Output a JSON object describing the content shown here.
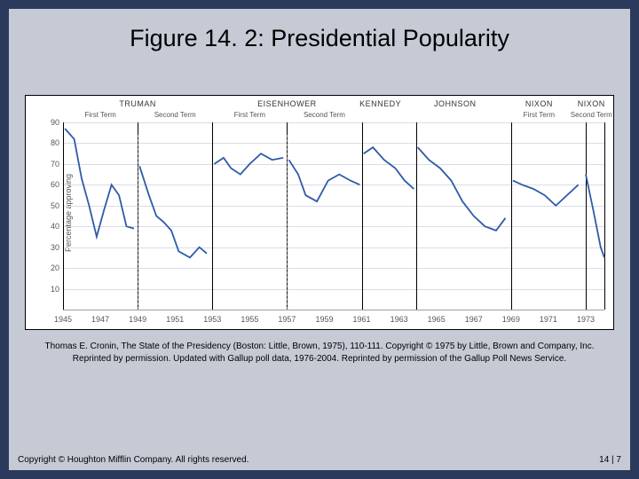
{
  "title": "Figure 14. 2: Presidential Popularity",
  "caption": "Thomas E. Cronin, The State of the Presidency (Boston: Little, Brown, 1975), 110-111. Copyright © 1975 by Little, Brown and Company, Inc. Reprinted by permission. Updated with Gallup poll data, 1976-2004. Reprinted by permission of the Gallup Poll News Service.",
  "footer_left": "Copyright © Houghton Mifflin Company. All rights reserved.",
  "footer_right": "14 | 7",
  "chart": {
    "type": "line",
    "y_label": "Percentage approving",
    "ylim": [
      0,
      90
    ],
    "ytick_step": 10,
    "xlim": [
      1945,
      1974
    ],
    "xticks": [
      1945,
      1947,
      1949,
      1951,
      1953,
      1955,
      1957,
      1959,
      1961,
      1963,
      1965,
      1967,
      1969,
      1971,
      1973
    ],
    "background_color": "#ffffff",
    "grid_color": "#d9dde4",
    "axis_color": "#9aa0aa",
    "line_color": "#2f5aa8",
    "line_width": 1.8,
    "presidents": [
      {
        "name": "TRUMAN",
        "x": 1949,
        "terms": [
          {
            "label": "First Term",
            "x": 1947
          },
          {
            "label": "Second Term",
            "x": 1951
          }
        ],
        "divider": 1949
      },
      {
        "name": "EISENHOWER",
        "x": 1957,
        "terms": [
          {
            "label": "First Term",
            "x": 1955
          },
          {
            "label": "Second Term",
            "x": 1959
          }
        ],
        "divider": 1957
      },
      {
        "name": "KENNEDY",
        "x": 1962,
        "terms": []
      },
      {
        "name": "JOHNSON",
        "x": 1966,
        "terms": []
      },
      {
        "name": "NIXON",
        "x": 1970.5,
        "terms": [
          {
            "label": "First Term",
            "x": 1970.5
          }
        ]
      },
      {
        "name": "NIXON",
        "x": 1973.3,
        "terms": [
          {
            "label": "Second Term",
            "x": 1973.3
          }
        ]
      }
    ],
    "term_boundaries": [
      1945,
      1949,
      1953,
      1957,
      1961,
      1963.9,
      1969,
      1973,
      1974
    ],
    "series": [
      {
        "x": 1945.1,
        "y": 87
      },
      {
        "x": 1945.6,
        "y": 82
      },
      {
        "x": 1946.0,
        "y": 63
      },
      {
        "x": 1946.4,
        "y": 50
      },
      {
        "x": 1946.8,
        "y": 35
      },
      {
        "x": 1947.2,
        "y": 48
      },
      {
        "x": 1947.6,
        "y": 60
      },
      {
        "x": 1948.0,
        "y": 55
      },
      {
        "x": 1948.4,
        "y": 40
      },
      {
        "x": 1948.8,
        "y": 39
      },
      {
        "x": 1949.1,
        "y": 69
      },
      {
        "x": 1949.6,
        "y": 55
      },
      {
        "x": 1950.0,
        "y": 45
      },
      {
        "x": 1950.4,
        "y": 42
      },
      {
        "x": 1950.8,
        "y": 38
      },
      {
        "x": 1951.2,
        "y": 28
      },
      {
        "x": 1951.8,
        "y": 25
      },
      {
        "x": 1952.3,
        "y": 30
      },
      {
        "x": 1952.7,
        "y": 27
      },
      {
        "x": 1953.1,
        "y": 70
      },
      {
        "x": 1953.6,
        "y": 73
      },
      {
        "x": 1954.0,
        "y": 68
      },
      {
        "x": 1954.5,
        "y": 65
      },
      {
        "x": 1955.0,
        "y": 70
      },
      {
        "x": 1955.6,
        "y": 75
      },
      {
        "x": 1956.2,
        "y": 72
      },
      {
        "x": 1956.8,
        "y": 73
      },
      {
        "x": 1957.1,
        "y": 72
      },
      {
        "x": 1957.6,
        "y": 65
      },
      {
        "x": 1958.0,
        "y": 55
      },
      {
        "x": 1958.6,
        "y": 52
      },
      {
        "x": 1959.2,
        "y": 62
      },
      {
        "x": 1959.8,
        "y": 65
      },
      {
        "x": 1960.4,
        "y": 62
      },
      {
        "x": 1960.9,
        "y": 60
      },
      {
        "x": 1961.1,
        "y": 75
      },
      {
        "x": 1961.6,
        "y": 78
      },
      {
        "x": 1962.2,
        "y": 72
      },
      {
        "x": 1962.8,
        "y": 68
      },
      {
        "x": 1963.3,
        "y": 62
      },
      {
        "x": 1963.8,
        "y": 58
      },
      {
        "x": 1964.0,
        "y": 78
      },
      {
        "x": 1964.6,
        "y": 72
      },
      {
        "x": 1965.2,
        "y": 68
      },
      {
        "x": 1965.8,
        "y": 62
      },
      {
        "x": 1966.4,
        "y": 52
      },
      {
        "x": 1967.0,
        "y": 45
      },
      {
        "x": 1967.6,
        "y": 40
      },
      {
        "x": 1968.2,
        "y": 38
      },
      {
        "x": 1968.7,
        "y": 44
      },
      {
        "x": 1969.1,
        "y": 62
      },
      {
        "x": 1969.6,
        "y": 60
      },
      {
        "x": 1970.2,
        "y": 58
      },
      {
        "x": 1970.8,
        "y": 55
      },
      {
        "x": 1971.4,
        "y": 50
      },
      {
        "x": 1972.0,
        "y": 55
      },
      {
        "x": 1972.6,
        "y": 60
      },
      {
        "x": 1973.0,
        "y": 65
      },
      {
        "x": 1973.4,
        "y": 48
      },
      {
        "x": 1973.8,
        "y": 30
      },
      {
        "x": 1974.0,
        "y": 25
      }
    ],
    "gaps_after": [
      1948.8,
      1952.7,
      1956.8,
      1960.9,
      1963.8,
      1968.7,
      1972.6
    ]
  }
}
